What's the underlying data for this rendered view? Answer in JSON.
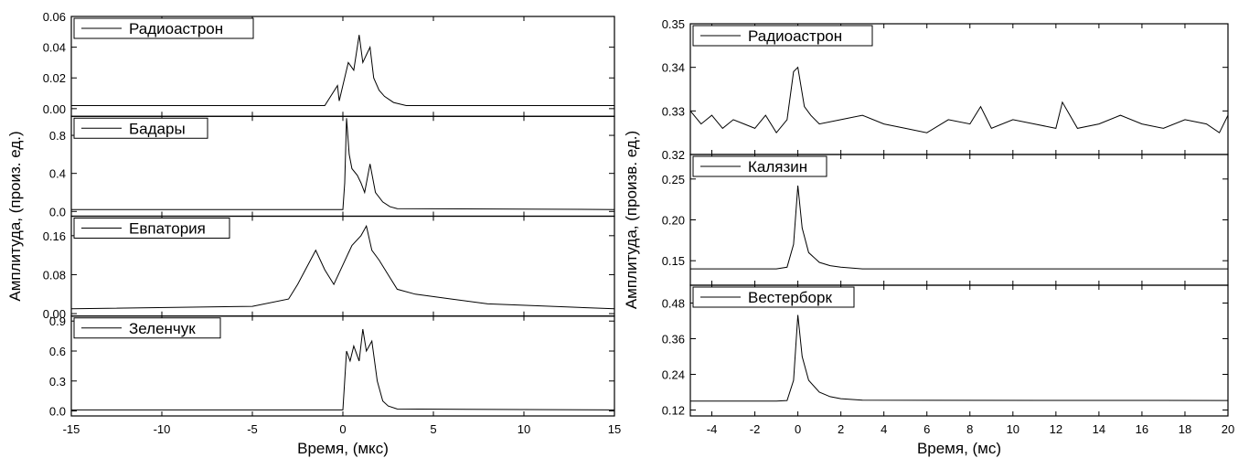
{
  "chart_data": [
    {
      "type": "line",
      "xlabel": "Время, (мкс)",
      "ylabel": "Амплитуда, (произ. ед.)",
      "xlim": [
        -15,
        15
      ],
      "xticks": [
        -15,
        -10,
        -5,
        0,
        5,
        10,
        15
      ],
      "panels": [
        {
          "legend": "Радиоастрон",
          "ylim": [
            -0.005,
            0.06
          ],
          "yticks": [
            "0.00",
            "0.02",
            "0.04",
            "0.06"
          ],
          "series": {
            "x": [
              -15,
              -1.0,
              -0.3,
              -0.2,
              0.3,
              0.6,
              0.9,
              1.1,
              1.3,
              1.5,
              1.7,
              2.0,
              2.3,
              2.8,
              3.5,
              15
            ],
            "y": [
              0.002,
              0.002,
              0.015,
              0.005,
              0.03,
              0.025,
              0.048,
              0.03,
              0.035,
              0.04,
              0.02,
              0.012,
              0.008,
              0.004,
              0.002,
              0.002
            ]
          }
        },
        {
          "legend": "Бадары",
          "ylim": [
            -0.05,
            1.0
          ],
          "yticks": [
            "0.0",
            "0.4",
            "0.8"
          ],
          "series": {
            "x": [
              -15,
              0.0,
              0.1,
              0.2,
              0.35,
              0.5,
              0.8,
              1.0,
              1.2,
              1.5,
              1.8,
              2.2,
              2.6,
              3.0,
              15
            ],
            "y": [
              0.02,
              0.02,
              0.3,
              0.98,
              0.6,
              0.45,
              0.38,
              0.3,
              0.2,
              0.5,
              0.2,
              0.1,
              0.05,
              0.03,
              0.02
            ]
          }
        },
        {
          "legend": "Евпатория",
          "ylim": [
            -0.005,
            0.2
          ],
          "yticks": [
            "0.00",
            "0.08",
            "0.16"
          ],
          "series": {
            "x": [
              -15,
              -5.0,
              -3.0,
              -2.5,
              -1.5,
              -1.0,
              -0.5,
              0.0,
              0.5,
              1.0,
              1.3,
              1.6,
              2.0,
              2.5,
              3.0,
              4.0,
              6.0,
              8.0,
              15
            ],
            "y": [
              0.01,
              0.015,
              0.03,
              0.06,
              0.13,
              0.09,
              0.06,
              0.1,
              0.14,
              0.16,
              0.18,
              0.13,
              0.11,
              0.08,
              0.05,
              0.04,
              0.03,
              0.02,
              0.01
            ]
          }
        },
        {
          "legend": "Зеленчук",
          "ylim": [
            -0.05,
            0.95
          ],
          "yticks": [
            "0.0",
            "0.3",
            "0.6",
            "0.9"
          ],
          "series": {
            "x": [
              -15,
              0.0,
              0.2,
              0.4,
              0.6,
              0.9,
              1.1,
              1.3,
              1.6,
              1.9,
              2.2,
              2.5,
              3.0,
              15
            ],
            "y": [
              0.01,
              0.01,
              0.6,
              0.5,
              0.65,
              0.5,
              0.82,
              0.6,
              0.7,
              0.3,
              0.1,
              0.05,
              0.02,
              0.01
            ]
          }
        }
      ]
    },
    {
      "type": "line",
      "xlabel": "Время, (мс)",
      "ylabel": "Амплитуда, (произв. ед.)",
      "xlim": [
        -5,
        20
      ],
      "xticks": [
        -4,
        -2,
        0,
        2,
        4,
        6,
        8,
        10,
        12,
        14,
        16,
        18,
        20
      ],
      "panels": [
        {
          "legend": "Радиоастрон",
          "ylim": [
            0.32,
            0.35
          ],
          "yticks": [
            "0.32",
            "0.33",
            "0.34",
            "0.35"
          ],
          "series": {
            "x": [
              -5,
              -4.5,
              -4,
              -3.5,
              -3,
              -2.5,
              -2,
              -1.5,
              -1,
              -0.5,
              -0.2,
              0,
              0.3,
              0.6,
              1,
              2,
              3,
              4,
              5,
              6,
              7,
              8,
              8.5,
              9,
              10,
              11,
              12,
              12.3,
              13,
              14,
              15,
              16,
              17,
              18,
              19,
              19.6,
              20
            ],
            "y": [
              0.33,
              0.327,
              0.329,
              0.326,
              0.328,
              0.327,
              0.326,
              0.329,
              0.325,
              0.328,
              0.339,
              0.34,
              0.331,
              0.329,
              0.327,
              0.328,
              0.329,
              0.327,
              0.326,
              0.325,
              0.328,
              0.327,
              0.331,
              0.326,
              0.328,
              0.327,
              0.326,
              0.332,
              0.326,
              0.327,
              0.329,
              0.327,
              0.326,
              0.328,
              0.327,
              0.325,
              0.329
            ]
          }
        },
        {
          "legend": "Калязин",
          "ylim": [
            0.12,
            0.28
          ],
          "yticks": [
            "0.15",
            "0.20",
            "0.25"
          ],
          "series": {
            "x": [
              -5,
              -1.0,
              -0.5,
              -0.2,
              0.0,
              0.2,
              0.5,
              1.0,
              1.5,
              2.0,
              3.0,
              20
            ],
            "y": [
              0.14,
              0.14,
              0.142,
              0.17,
              0.242,
              0.19,
              0.16,
              0.148,
              0.144,
              0.142,
              0.14,
              0.14
            ]
          }
        },
        {
          "legend": "Вестерборк",
          "ylim": [
            0.1,
            0.54
          ],
          "yticks": [
            "0.12",
            "0.24",
            "0.36",
            "0.48"
          ],
          "series": {
            "x": [
              -5,
              -1.0,
              -0.5,
              -0.2,
              0.0,
              0.2,
              0.5,
              1.0,
              1.5,
              2.0,
              3.0,
              20
            ],
            "y": [
              0.15,
              0.15,
              0.152,
              0.22,
              0.44,
              0.3,
              0.22,
              0.18,
              0.165,
              0.158,
              0.153,
              0.152
            ]
          }
        }
      ]
    }
  ]
}
